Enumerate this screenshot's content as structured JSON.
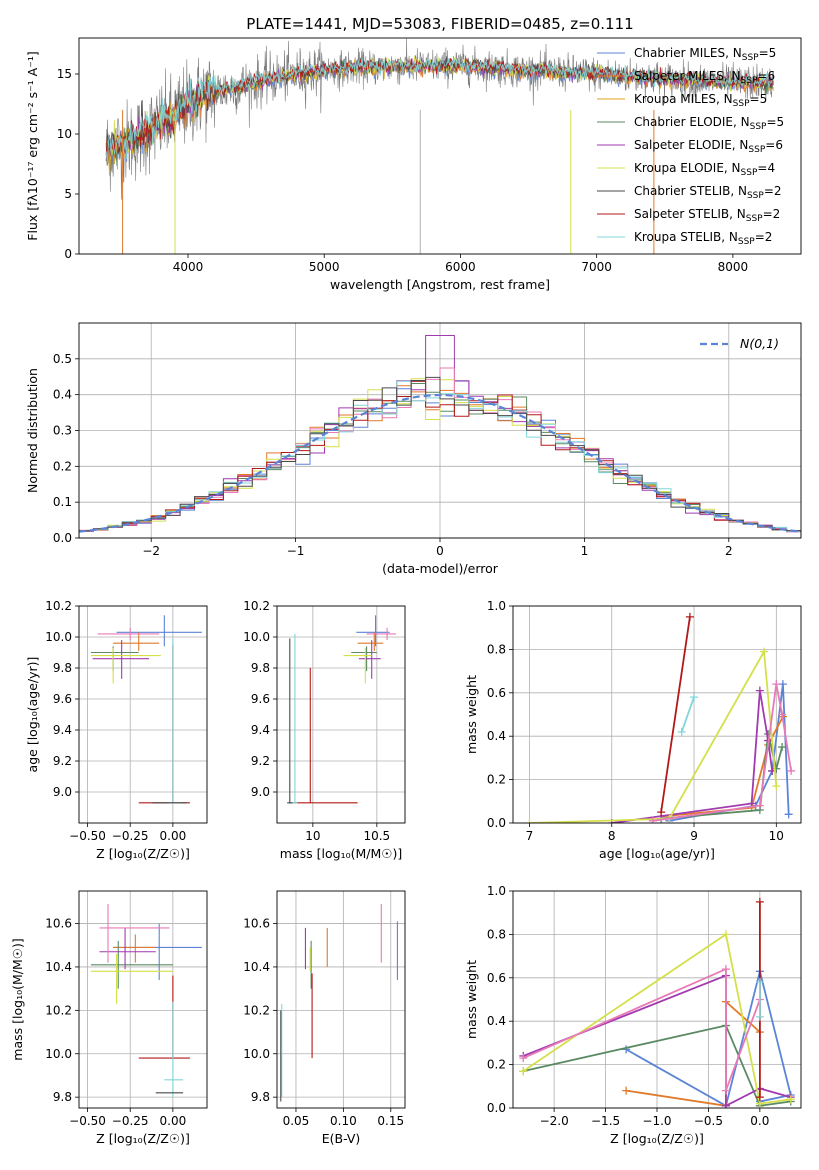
{
  "figure": {
    "title": "PLATE=1441, MJD=53083, FIBERID=0485, z=0.111"
  },
  "chart_data": [
    {
      "id": "spectrum",
      "type": "line",
      "xlabel": "wavelength [Angstrom, rest frame]",
      "ylabel": "Flux [fλ10⁻¹⁷ erg cm⁻² s⁻¹ A⁻¹]",
      "xlim": [
        3200,
        8500
      ],
      "ylim": [
        0,
        18
      ],
      "xticks": [
        4000,
        5000,
        6000,
        7000,
        8000
      ],
      "yticks": [
        0,
        5,
        10,
        15
      ],
      "grid": false,
      "legend_position": "right",
      "series": [
        {
          "name": "Chabrier MILES, N_SSP=5",
          "color": "#5b84d6"
        },
        {
          "name": "Salpeter MILES, N_SSP=6",
          "color": "#e07a2c"
        },
        {
          "name": "Kroupa MILES, N_SSP=5",
          "color": "#e0a51d"
        },
        {
          "name": "Chabrier ELODIE, N_SSP=5",
          "color": "#5a8a62"
        },
        {
          "name": "Salpeter ELODIE, N_SSP=6",
          "color": "#a23ab0"
        },
        {
          "name": "Kroupa ELODIE, N_SSP=4",
          "color": "#d4e04a"
        },
        {
          "name": "Chabrier STELIB, N_SSP=2",
          "color": "#4a4a4a"
        },
        {
          "name": "Salpeter STELIB, N_SSP=2",
          "color": "#b31818"
        },
        {
          "name": "Kroupa STELIB, N_SSP=2",
          "color": "#80d6d9"
        }
      ],
      "continuum_knots": {
        "x": [
          3400,
          3600,
          3750,
          3900,
          4000,
          4100,
          4200,
          4400,
          4600,
          4800,
          5000,
          5200,
          5500,
          6000,
          6500,
          7000,
          7500,
          8000,
          8300
        ],
        "y": [
          8.7,
          9.5,
          10.5,
          11.5,
          12.5,
          13.2,
          13.5,
          14.0,
          14.6,
          15.0,
          15.3,
          15.5,
          15.6,
          15.7,
          15.3,
          15.0,
          14.6,
          14.3,
          14.2
        ]
      },
      "gaps_x": [
        3520,
        3905,
        5705,
        6810,
        7420
      ]
    },
    {
      "id": "residuals",
      "type": "histogram",
      "xlabel": "(data-model)/error",
      "ylabel": "Normed distribution",
      "xlim": [
        -2.5,
        2.5
      ],
      "ylim": [
        0,
        0.6
      ],
      "xticks": [
        -2,
        -1,
        0,
        1,
        2
      ],
      "yticks": [
        0.0,
        0.1,
        0.2,
        0.3,
        0.4,
        0.5
      ],
      "grid": true,
      "legend": [
        "N(0,1)"
      ],
      "legend_position": "top-right",
      "gaussian": {
        "mean": 0,
        "sigma": 1,
        "color": "#5b84d6"
      },
      "bin_width": 0.1,
      "histogram_colors": [
        "#5b84d6",
        "#e07a2c",
        "#5a8a62",
        "#a23ab0",
        "#d4e04a",
        "#e87ab6",
        "#b31818",
        "#80d6d9",
        "#4a4a4a"
      ]
    },
    {
      "id": "age-vs-Z",
      "type": "errorbar",
      "xlabel": "Z [log₁₀(Z/Z☉)]",
      "ylabel": "age  [log₁₀(age/yr)]",
      "xlim": [
        -0.55,
        0.2
      ],
      "ylim": [
        8.8,
        10.2
      ],
      "xticks": [
        -0.5,
        -0.25,
        0.0
      ],
      "xticklabels": [
        "−0.50",
        "−0.25",
        "0.00"
      ],
      "yticks": [
        9.0,
        9.2,
        9.4,
        9.6,
        9.8,
        10.0,
        10.2
      ],
      "grid": true,
      "points": [
        {
          "x": -0.05,
          "y": 10.03,
          "xlo": -0.33,
          "xhi": 0.17,
          "ylo": 9.94,
          "yhi": 10.14,
          "color": "#5b84d6"
        },
        {
          "x": -0.2,
          "y": 9.96,
          "xlo": -0.35,
          "xhi": -0.08,
          "ylo": 9.91,
          "yhi": 10.03,
          "color": "#e07a2c"
        },
        {
          "x": -0.35,
          "y": 9.9,
          "xlo": -0.48,
          "xhi": -0.2,
          "ylo": 9.78,
          "yhi": 9.94,
          "color": "#5a8a62"
        },
        {
          "x": -0.3,
          "y": 9.86,
          "xlo": -0.47,
          "xhi": -0.14,
          "ylo": 9.73,
          "yhi": 9.98,
          "color": "#a23ab0"
        },
        {
          "x": -0.35,
          "y": 9.88,
          "xlo": -0.48,
          "xhi": -0.07,
          "ylo": 9.7,
          "yhi": 9.93,
          "color": "#d4e04a"
        },
        {
          "x": -0.25,
          "y": 10.02,
          "xlo": -0.44,
          "xhi": -0.08,
          "ylo": 9.98,
          "yhi": 10.06,
          "color": "#e87ab6"
        },
        {
          "x": 0.0,
          "y": 8.93,
          "xlo": -0.2,
          "xhi": 0.1,
          "ylo": 8.93,
          "yhi": 9.95,
          "color": "#b31818"
        },
        {
          "x": 0.0,
          "y": 8.93,
          "xlo": -0.03,
          "xhi": 0.05,
          "ylo": 8.93,
          "yhi": 9.99,
          "color": "#80d6d9"
        },
        {
          "x": 0.0,
          "y": 8.93,
          "xlo": -0.12,
          "xhi": 0.08,
          "ylo": 8.93,
          "yhi": 8.93,
          "color": "#4a4a4a"
        }
      ]
    },
    {
      "id": "age-vs-mass",
      "type": "errorbar",
      "xlabel": "mass [log₁₀(M/M☉)]",
      "xlim": [
        9.72,
        10.72
      ],
      "ylim": [
        8.8,
        10.2
      ],
      "xticks": [
        10.0,
        10.5
      ],
      "yticks": [
        9.0,
        9.2,
        9.4,
        9.6,
        9.8,
        10.0,
        10.2
      ],
      "grid": true,
      "points": [
        {
          "x": 10.49,
          "y": 10.03,
          "xlo": 10.34,
          "xhi": 10.6,
          "ylo": 9.94,
          "yhi": 10.14,
          "color": "#5b84d6"
        },
        {
          "x": 10.48,
          "y": 9.96,
          "xlo": 10.35,
          "xhi": 10.55,
          "ylo": 9.91,
          "yhi": 10.03,
          "color": "#e07a2c"
        },
        {
          "x": 10.42,
          "y": 9.9,
          "xlo": 10.3,
          "xhi": 10.5,
          "ylo": 9.78,
          "yhi": 9.94,
          "color": "#5a8a62"
        },
        {
          "x": 10.46,
          "y": 9.86,
          "xlo": 10.36,
          "xhi": 10.53,
          "ylo": 9.73,
          "yhi": 9.98,
          "color": "#a23ab0"
        },
        {
          "x": 10.41,
          "y": 9.88,
          "xlo": 10.24,
          "xhi": 10.46,
          "ylo": 9.7,
          "yhi": 9.93,
          "color": "#d4e04a"
        },
        {
          "x": 10.58,
          "y": 10.02,
          "xlo": 10.42,
          "xhi": 10.65,
          "ylo": 9.98,
          "yhi": 10.06,
          "color": "#e87ab6"
        },
        {
          "x": 9.98,
          "y": 8.93,
          "xlo": 9.82,
          "xhi": 10.35,
          "ylo": 8.93,
          "yhi": 9.8,
          "color": "#b31818"
        },
        {
          "x": 9.86,
          "y": 8.93,
          "xlo": 9.8,
          "xhi": 9.88,
          "ylo": 8.93,
          "yhi": 10.02,
          "color": "#80d6d9"
        },
        {
          "x": 9.82,
          "y": 8.93,
          "xlo": 9.8,
          "xhi": 9.84,
          "ylo": 8.93,
          "yhi": 9.99,
          "color": "#4a4a4a"
        }
      ]
    },
    {
      "id": "weight-vs-age",
      "type": "line",
      "xlabel": "age  [log₁₀(age/yr)]",
      "ylabel": "mass weight",
      "xlim": [
        6.8,
        10.3
      ],
      "ylim": [
        0,
        1
      ],
      "xticks": [
        7,
        8,
        9,
        10
      ],
      "yticks": [
        0.0,
        0.2,
        0.4,
        0.6,
        0.8,
        1.0
      ],
      "grid": true,
      "series": [
        {
          "color": "#5b84d6",
          "x": [
            8.7,
            9.75,
            9.95,
            10.08,
            10.15
          ],
          "y": [
            0.01,
            0.08,
            0.24,
            0.64,
            0.04
          ]
        },
        {
          "color": "#e07a2c",
          "x": [
            8.6,
            9.7,
            9.9,
            10.08
          ],
          "y": [
            0.03,
            0.07,
            0.36,
            0.49
          ]
        },
        {
          "color": "#5a8a62",
          "x": [
            8.6,
            9.8,
            9.9,
            10.0,
            10.07
          ],
          "y": [
            0.02,
            0.06,
            0.41,
            0.25,
            0.35
          ]
        },
        {
          "color": "#a23ab0",
          "x": [
            8.0,
            9.7,
            9.8,
            9.9,
            9.95
          ],
          "y": [
            0.0,
            0.09,
            0.61,
            0.38,
            0.24
          ]
        },
        {
          "color": "#d4e04a",
          "x": [
            7.0,
            8.7,
            9.85,
            10.0
          ],
          "y": [
            0.0,
            0.02,
            0.79,
            0.17
          ]
        },
        {
          "color": "#e87ab6",
          "x": [
            8.5,
            9.8,
            10.0,
            10.07,
            10.18
          ],
          "y": [
            0.01,
            0.08,
            0.64,
            0.5,
            0.24
          ]
        },
        {
          "color": "#b31818",
          "x": [
            8.6,
            8.95
          ],
          "y": [
            0.05,
            0.95
          ]
        },
        {
          "color": "#80d6d9",
          "x": [
            8.85,
            9.0
          ],
          "y": [
            0.42,
            0.58
          ]
        },
        {
          "color": "#4a4a4a",
          "x": [],
          "y": []
        }
      ]
    },
    {
      "id": "mass-vs-Z",
      "type": "errorbar",
      "xlabel": "Z [log₁₀(Z/Z☉)]",
      "ylabel": "mass [log₁₀(M/M☉)]",
      "xlim": [
        -0.55,
        0.2
      ],
      "ylim": [
        9.75,
        10.75
      ],
      "xticks": [
        -0.5,
        -0.25,
        0.0
      ],
      "xticklabels": [
        "−0.50",
        "−0.25",
        "0.00"
      ],
      "yticks": [
        9.8,
        10.0,
        10.2,
        10.4,
        10.6
      ],
      "grid": true,
      "points": [
        {
          "x": -0.08,
          "y": 10.49,
          "xlo": -0.35,
          "xhi": 0.17,
          "ylo": 10.34,
          "yhi": 10.6,
          "color": "#5b84d6"
        },
        {
          "x": -0.22,
          "y": 10.49,
          "xlo": -0.35,
          "xhi": -0.1,
          "ylo": 10.42,
          "yhi": 10.55,
          "color": "#e07a2c"
        },
        {
          "x": -0.32,
          "y": 10.41,
          "xlo": -0.48,
          "xhi": 0.0,
          "ylo": 10.3,
          "yhi": 10.52,
          "color": "#5a8a62"
        },
        {
          "x": -0.28,
          "y": 10.47,
          "xlo": -0.43,
          "xhi": -0.1,
          "ylo": 10.39,
          "yhi": 10.58,
          "color": "#a23ab0"
        },
        {
          "x": -0.33,
          "y": 10.38,
          "xlo": -0.48,
          "xhi": 0.0,
          "ylo": 10.23,
          "yhi": 10.46,
          "color": "#d4e04a"
        },
        {
          "x": -0.38,
          "y": 10.58,
          "xlo": -0.43,
          "xhi": -0.02,
          "ylo": 10.42,
          "yhi": 10.69,
          "color": "#e87ab6"
        },
        {
          "x": 0.0,
          "y": 9.98,
          "xlo": -0.2,
          "xhi": 0.1,
          "ylo": 9.98,
          "yhi": 10.36,
          "color": "#b31818"
        },
        {
          "x": 0.0,
          "y": 9.88,
          "xlo": -0.05,
          "xhi": 0.06,
          "ylo": 9.8,
          "yhi": 10.24,
          "color": "#80d6d9"
        },
        {
          "x": 0.0,
          "y": 9.82,
          "xlo": -0.1,
          "xhi": 0.06,
          "ylo": 9.82,
          "yhi": 9.82,
          "color": "#4a4a4a"
        }
      ]
    },
    {
      "id": "mass-vs-ebv",
      "type": "errorbar",
      "xlabel": "E(B-V)",
      "xlim": [
        0.03,
        0.165
      ],
      "ylim": [
        9.75,
        10.75
      ],
      "xticks": [
        0.05,
        0.1,
        0.15
      ],
      "xticklabels": [
        "0.05",
        "0.10",
        "0.15"
      ],
      "yticks": [
        9.8,
        10.0,
        10.2,
        10.4,
        10.6
      ],
      "grid": true,
      "points": [
        {
          "x": 0.157,
          "y": 10.49,
          "ylo": 10.34,
          "yhi": 10.61,
          "color": "#5b84d6"
        },
        {
          "x": 0.083,
          "y": 10.49,
          "ylo": 10.4,
          "yhi": 10.58,
          "color": "#e07a2c"
        },
        {
          "x": 0.066,
          "y": 10.41,
          "ylo": 10.3,
          "yhi": 10.52,
          "color": "#5a8a62"
        },
        {
          "x": 0.06,
          "y": 10.48,
          "ylo": 10.39,
          "yhi": 10.58,
          "color": "#a23ab0"
        },
        {
          "x": 0.065,
          "y": 10.44,
          "ylo": 10.38,
          "yhi": 10.49,
          "color": "#d4e04a"
        },
        {
          "x": 0.14,
          "y": 10.58,
          "ylo": 10.42,
          "yhi": 10.69,
          "color": "#e87ab6"
        },
        {
          "x": 0.067,
          "y": 10.2,
          "ylo": 9.98,
          "yhi": 10.37,
          "color": "#b31818"
        },
        {
          "x": 0.035,
          "y": 10.0,
          "ylo": 9.8,
          "yhi": 10.23,
          "color": "#80d6d9"
        },
        {
          "x": 0.034,
          "y": 9.99,
          "ylo": 9.78,
          "yhi": 10.2,
          "color": "#4a4a4a"
        }
      ]
    },
    {
      "id": "weight-vs-Z",
      "type": "line",
      "xlabel": "Z [log₁₀(Z/Z☉)]",
      "ylabel": "mass weight",
      "xlim": [
        -2.4,
        0.4
      ],
      "ylim": [
        0,
        1
      ],
      "xticks": [
        -2.0,
        -1.5,
        -1.0,
        -0.5,
        0.0
      ],
      "xticklabels": [
        "−2.0",
        "−1.5",
        "−1.0",
        "−0.5",
        "0.0"
      ],
      "yticks": [
        0.0,
        0.2,
        0.4,
        0.6,
        0.8,
        1.0
      ],
      "grid": true,
      "series": [
        {
          "color": "#5b84d6",
          "x": [
            -1.3,
            -0.33,
            0.0,
            0.3,
            0.0
          ],
          "y": [
            0.27,
            0.01,
            0.63,
            0.06,
            0.03
          ]
        },
        {
          "color": "#e07a2c",
          "x": [
            -1.3,
            -0.33,
            -0.33,
            0.0
          ],
          "y": [
            0.08,
            0.01,
            0.49,
            0.35
          ]
        },
        {
          "color": "#5a8a62",
          "x": [
            -2.3,
            -0.33,
            0.0,
            0.3
          ],
          "y": [
            0.17,
            0.38,
            0.01,
            0.03
          ]
        },
        {
          "color": "#a23ab0",
          "x": [
            -2.3,
            -0.33,
            -0.33,
            0.0,
            0.3
          ],
          "y": [
            0.24,
            0.61,
            0.01,
            0.09,
            0.05
          ]
        },
        {
          "color": "#d4e04a",
          "x": [
            -2.3,
            -0.33,
            0.0,
            0.3
          ],
          "y": [
            0.17,
            0.8,
            0.02,
            0.04
          ]
        },
        {
          "color": "#e87ab6",
          "x": [
            -2.3,
            -0.33,
            -0.33,
            0.0
          ],
          "y": [
            0.23,
            0.64,
            0.08,
            0.5
          ]
        },
        {
          "color": "#b31818",
          "x": [
            0.0,
            0.0
          ],
          "y": [
            0.05,
            0.95
          ]
        },
        {
          "color": "#80d6d9",
          "x": [
            0.0,
            0.0
          ],
          "y": [
            0.42,
            0.58
          ]
        },
        {
          "color": "#4a4a4a",
          "x": [],
          "y": []
        }
      ]
    }
  ]
}
